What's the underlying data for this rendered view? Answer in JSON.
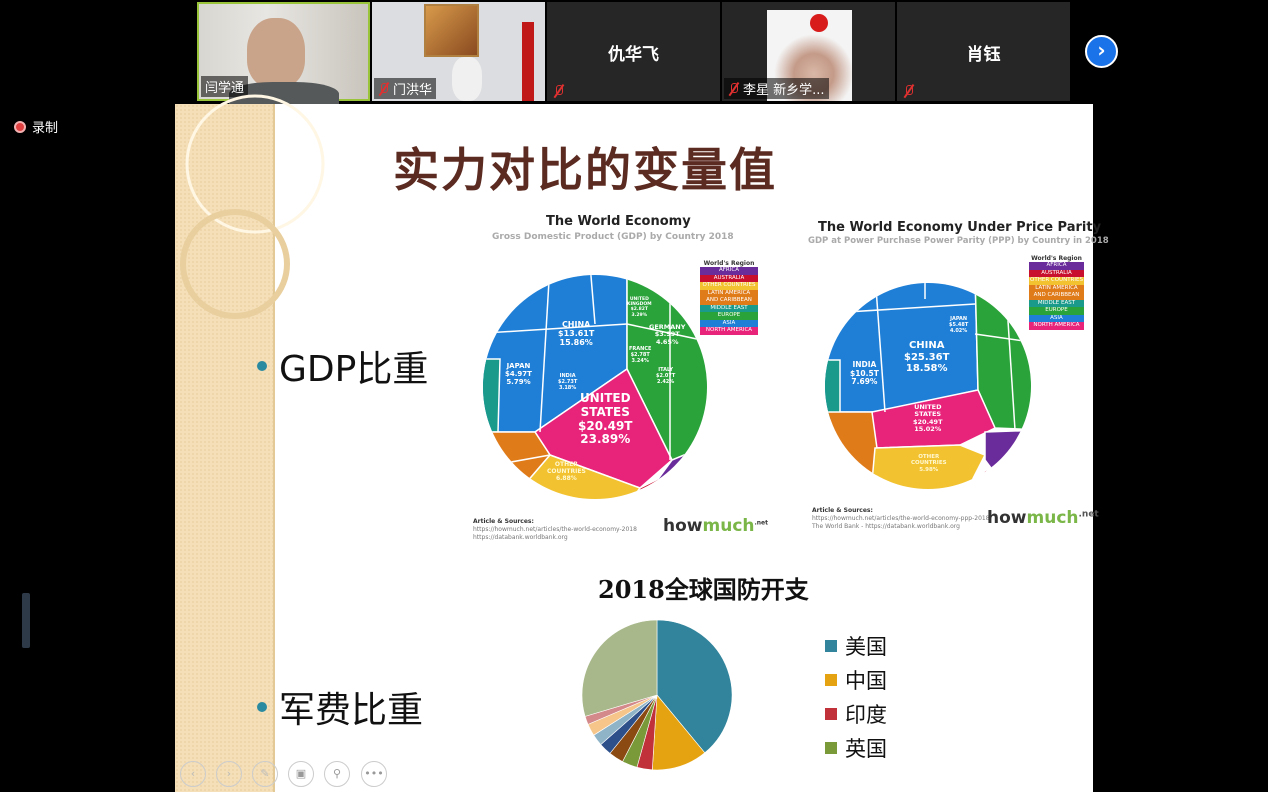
{
  "meeting": {
    "record_label": "录制",
    "participants": [
      {
        "name": "闫学通",
        "muted": false,
        "video": true
      },
      {
        "name": "门洪华",
        "muted": true,
        "video": true
      },
      {
        "name": "仇华飞",
        "muted": true,
        "video": false
      },
      {
        "name": "李星 新乡学...",
        "muted": true,
        "video": true
      },
      {
        "name": "肖钰",
        "muted": true,
        "video": false
      }
    ],
    "next_icon": "chevron-right-icon",
    "accent": "#1a73e8"
  },
  "slide": {
    "title": "实力对比的变量值",
    "bullet_gdp": "GDP比重",
    "bullet_military": "军费比重",
    "gdp_chart": {
      "title": "The World Economy",
      "subtitle": "Gross Domestic Product (GDP) by Country 2018",
      "labels": {
        "china": [
          "CHINA",
          "$13.61T",
          "15.86%"
        ],
        "us": [
          "UNITED",
          "STATES",
          "$20.49T",
          "23.89%"
        ],
        "japan": [
          "JAPAN",
          "$4.97T",
          "5.79%"
        ],
        "germany": [
          "GERMANY",
          "$3.99T",
          "4.65%"
        ],
        "india": [
          "INDIA",
          "$2.73T",
          "3.18%"
        ],
        "uk": [
          "UNITED",
          "KINGDOM",
          "$2.82T",
          "3.29%"
        ],
        "france": [
          "FRANCE",
          "$2.78T",
          "3.24%"
        ],
        "italy": [
          "ITALY",
          "$2.07T",
          "2.42%"
        ],
        "other": [
          "OTHER",
          "COUNTRIES",
          "6.88%"
        ]
      },
      "sources_title": "Article & Sources:",
      "sources": [
        "https://howmuch.net/articles/the-world-economy-2018",
        "https://databank.worldbank.org"
      ],
      "brand": [
        "how",
        "much",
        ".net"
      ]
    },
    "ppp_chart": {
      "title": "The World Economy Under Price Parity",
      "subtitle": "GDP at Power Purchase Power Parity (PPP) by Country in 2018",
      "labels": {
        "china": [
          "CHINA",
          "$25.36T",
          "18.58%"
        ],
        "us": [
          "UNITED",
          "STATES",
          "$20.49T",
          "15.02%"
        ],
        "india": [
          "INDIA",
          "$10.5T",
          "7.69%"
        ],
        "japan": [
          "JAPAN",
          "$5.48T",
          "4.02%"
        ],
        "other": [
          "OTHER",
          "COUNTRIES",
          "5.98%"
        ]
      },
      "sources_title": "Article & Sources:",
      "sources": [
        "https://howmuch.net/articles/the-world-economy-ppp-2018",
        "The World Bank - https://databank.worldbank.org"
      ],
      "brand": [
        "how",
        "much",
        ".net"
      ]
    },
    "region_legend": {
      "title": "World's Region",
      "items": [
        {
          "label": "AFRICA",
          "color": "#6a2c9a"
        },
        {
          "label": "AUSTRALIA",
          "color": "#c8102e"
        },
        {
          "label": "OTHER COUNTRIES",
          "color": "#f2c230"
        },
        {
          "label": "LATIN AMERICA",
          "color": "#e07b1a"
        },
        {
          "label": "AND CARIBBEAN",
          "color": "#e07b1a"
        },
        {
          "label": "MIDDLE EAST",
          "color": "#1a9a8a"
        },
        {
          "label": "EUROPE",
          "color": "#2aa33a"
        },
        {
          "label": "ASIA",
          "color": "#1f7fd6"
        },
        {
          "label": "NORTH AMERICA",
          "color": "#e8237a"
        }
      ]
    },
    "chart_data": {
      "type": "pie",
      "title": "2018全球国防开支",
      "legend_position": "right",
      "series": [
        {
          "name": "美国",
          "value": 39,
          "color": "#31849b"
        },
        {
          "name": "中国",
          "value": 12,
          "color": "#e5a312"
        },
        {
          "name": "印度",
          "value": 3.3,
          "color": "#c0313a"
        },
        {
          "name": "英国",
          "value": 3.3,
          "color": "#7a9a3a"
        },
        {
          "value": 3.2,
          "color": "#8a4a12"
        },
        {
          "value": 2.7,
          "color": "#2d4f8a"
        },
        {
          "value": 2.5,
          "color": "#8fb4c8"
        },
        {
          "value": 2.6,
          "color": "#f5c58a"
        },
        {
          "value": 1.8,
          "color": "#d48a8a"
        },
        {
          "value": 29.6,
          "color": "#a8b88a"
        }
      ]
    },
    "controls": [
      "prev-icon",
      "next-icon",
      "pen-icon",
      "slides-icon",
      "zoom-icon",
      "more-icon"
    ]
  }
}
